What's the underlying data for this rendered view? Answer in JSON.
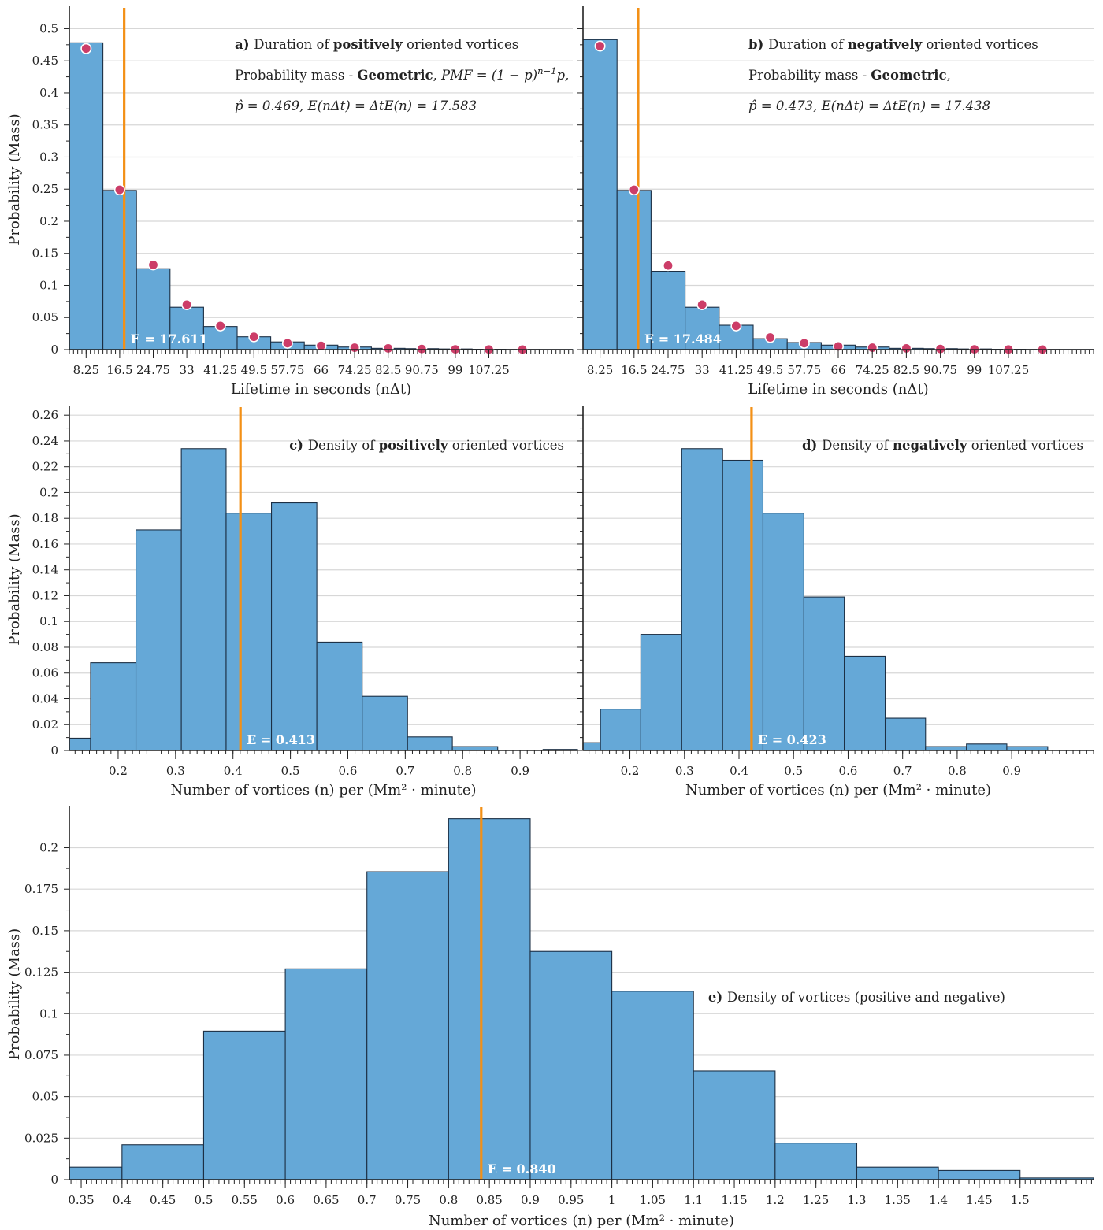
{
  "chart_data": [
    {
      "id": "a",
      "type": "bar",
      "panel_letter": "a)",
      "annotation_lines": [
        [
          {
            "t": "Duration of "
          },
          {
            "t": "positively",
            "b": true
          },
          {
            "t": " oriented vortices"
          }
        ],
        [
          {
            "t": "Probability mass - "
          },
          {
            "t": "Geometric",
            "b": true
          },
          {
            "t": ", "
          },
          {
            "t": "PMF = (1 − p)",
            "i": true
          },
          {
            "t": "n−1",
            "i": true,
            "sup": true
          },
          {
            "t": "p,",
            "i": true
          }
        ],
        [
          {
            "t": "p̂ = 0.469, E(nΔt) = ΔtE(n) = 17.583",
            "i": true
          }
        ]
      ],
      "xlabel": "Lifetime in seconds (nΔt)",
      "ylabel": "Probability (Mass)",
      "xlim": [
        4.125,
        127.875
      ],
      "ylim": [
        0,
        0.53
      ],
      "xticks": [
        8.25,
        16.5,
        24.75,
        33,
        41.25,
        49.5,
        57.75,
        66,
        74.25,
        82.5,
        90.75,
        99,
        107.25
      ],
      "xtick_labels": [
        "8.25",
        "16.5",
        "24.75",
        "33",
        "41.25",
        "49.5",
        "57.75",
        "66",
        "74.25",
        "82.5",
        "90.75",
        "99",
        "107.25"
      ],
      "yticks": [
        0,
        0.05,
        0.1,
        0.15,
        0.2,
        0.25,
        0.3,
        0.35,
        0.4,
        0.45,
        0.5
      ],
      "ytick_labels": [
        "0",
        "0.05",
        "0.1",
        "0.15",
        "0.2",
        "0.25",
        "0.3",
        "0.35",
        "0.4",
        "0.45",
        "0.5"
      ],
      "bin_edges": [
        4.125,
        12.375,
        20.625,
        28.875,
        37.125,
        45.375,
        53.625,
        61.875,
        70.125,
        78.375,
        86.625,
        94.875,
        103.125,
        111.375,
        119.625,
        127.875
      ],
      "values": [
        0.478,
        0.248,
        0.126,
        0.066,
        0.036,
        0.02,
        0.012,
        0.007,
        0.004,
        0.002,
        0.0015,
        0.001,
        0.0005,
        0.0003,
        0.0002
      ],
      "pmf_points": {
        "x": [
          8.25,
          16.5,
          24.75,
          33,
          41.25,
          49.5,
          57.75,
          66,
          74.25,
          82.5,
          90.75,
          99,
          107.25,
          115.5
        ],
        "y": [
          0.469,
          0.249,
          0.132,
          0.07,
          0.037,
          0.02,
          0.01,
          0.006,
          0.003,
          0.002,
          0.001,
          0.0005,
          0.0002,
          0.0001
        ]
      },
      "mean_line": 17.611,
      "mean_label": "E = 17.611",
      "grid": true
    },
    {
      "id": "b",
      "type": "bar",
      "panel_letter": "b)",
      "annotation_lines": [
        [
          {
            "t": "Duration of "
          },
          {
            "t": "negatively",
            "b": true
          },
          {
            "t": " oriented vortices"
          }
        ],
        [
          {
            "t": "Probability mass - "
          },
          {
            "t": "Geometric",
            "b": true
          },
          {
            "t": ","
          }
        ],
        [
          {
            "t": "p̂ = 0.473, E(nΔt) = ΔtE(n) = 17.438",
            "i": true
          }
        ]
      ],
      "xlabel": "Lifetime in seconds (nΔt)",
      "ylabel": "",
      "xlim": [
        4.125,
        127.875
      ],
      "ylim": [
        0,
        0.53
      ],
      "xticks": [
        8.25,
        16.5,
        24.75,
        33,
        41.25,
        49.5,
        57.75,
        66,
        74.25,
        82.5,
        90.75,
        99,
        107.25
      ],
      "xtick_labels": [
        "8.25",
        "16.5",
        "24.75",
        "33",
        "41.25",
        "49.5",
        "57.75",
        "66",
        "74.25",
        "82.5",
        "90.75",
        "99",
        "107.25"
      ],
      "yticks": [
        0,
        0.05,
        0.1,
        0.15,
        0.2,
        0.25,
        0.3,
        0.35,
        0.4,
        0.45,
        0.5
      ],
      "ytick_labels": [],
      "bin_edges": [
        4.125,
        12.375,
        20.625,
        28.875,
        37.125,
        45.375,
        53.625,
        61.875,
        70.125,
        78.375,
        86.625,
        94.875,
        103.125,
        111.375,
        119.625,
        127.875
      ],
      "values": [
        0.483,
        0.248,
        0.122,
        0.066,
        0.038,
        0.017,
        0.011,
        0.007,
        0.004,
        0.002,
        0.0015,
        0.001,
        0.0005,
        0.0003,
        0.0002
      ],
      "pmf_points": {
        "x": [
          8.25,
          16.5,
          24.75,
          33,
          41.25,
          49.5,
          57.75,
          66,
          74.25,
          82.5,
          90.75,
          99,
          107.25,
          115.5
        ],
        "y": [
          0.473,
          0.249,
          0.131,
          0.07,
          0.037,
          0.019,
          0.01,
          0.005,
          0.003,
          0.002,
          0.001,
          0.0005,
          0.0002,
          0.0001
        ]
      },
      "mean_line": 17.484,
      "mean_label": "E = 17.484",
      "grid": true
    },
    {
      "id": "c",
      "type": "bar",
      "panel_letter": "c)",
      "annotation_lines": [
        [
          {
            "t": "Density of "
          },
          {
            "t": "positively",
            "b": true
          },
          {
            "t": " oriented vortices"
          }
        ]
      ],
      "xlabel": "Number of vortices (n) per (Mm² · minute)",
      "ylabel": "Probability (Mass)",
      "xlim": [
        0.115,
        1.0
      ],
      "ylim": [
        0,
        0.265
      ],
      "xticks": [
        0.2,
        0.3,
        0.4,
        0.5,
        0.6,
        0.7,
        0.8,
        0.9
      ],
      "xtick_labels": [
        "0.2",
        "0.3",
        "0.4",
        "0.5",
        "0.6",
        "0.7",
        "0.8",
        "0.9"
      ],
      "yticks": [
        0,
        0.02,
        0.04,
        0.06,
        0.08,
        0.1,
        0.12,
        0.14,
        0.16,
        0.18,
        0.2,
        0.22,
        0.24,
        0.26
      ],
      "ytick_labels": [
        "0",
        "0.02",
        "0.04",
        "0.06",
        "0.08",
        "0.1",
        "0.12",
        "0.14",
        "0.16",
        "0.18",
        "0.2",
        "0.22",
        "0.24",
        "0.26"
      ],
      "bin_edges": [
        0.115,
        0.152,
        0.231,
        0.31,
        0.388,
        0.467,
        0.546,
        0.625,
        0.704,
        0.782,
        0.861,
        0.94,
        1.0
      ],
      "values": [
        0.0095,
        0.068,
        0.171,
        0.234,
        0.184,
        0.192,
        0.084,
        0.042,
        0.0105,
        0.003,
        0.0,
        0.0008
      ],
      "mean_line": 0.413,
      "mean_label": "E = 0.413",
      "grid": true
    },
    {
      "id": "d",
      "type": "bar",
      "panel_letter": "d)",
      "annotation_lines": [
        [
          {
            "t": "Density of "
          },
          {
            "t": "negatively",
            "b": true
          },
          {
            "t": " oriented vortices"
          }
        ]
      ],
      "xlabel": "Number of vortices (n) per (Mm² · minute)",
      "ylabel": "",
      "xlim": [
        0.114,
        1.05
      ],
      "ylim": [
        0,
        0.265
      ],
      "xticks": [
        0.2,
        0.3,
        0.4,
        0.5,
        0.6,
        0.7,
        0.8,
        0.9
      ],
      "xtick_labels": [
        "0.2",
        "0.3",
        "0.4",
        "0.5",
        "0.6",
        "0.7",
        "0.8",
        "0.9"
      ],
      "yticks": [
        0,
        0.02,
        0.04,
        0.06,
        0.08,
        0.1,
        0.12,
        0.14,
        0.16,
        0.18,
        0.2,
        0.22,
        0.24,
        0.26
      ],
      "ytick_labels": [],
      "bin_edges": [
        0.114,
        0.146,
        0.22,
        0.295,
        0.37,
        0.444,
        0.519,
        0.593,
        0.668,
        0.742,
        0.817,
        0.891,
        0.966
      ],
      "values": [
        0.006,
        0.032,
        0.09,
        0.234,
        0.225,
        0.184,
        0.119,
        0.073,
        0.025,
        0.003,
        0.005,
        0.003
      ],
      "mean_line": 0.423,
      "mean_label": "E = 0.423",
      "grid": true
    },
    {
      "id": "e",
      "type": "bar",
      "panel_letter": "e)",
      "annotation_lines": [
        [
          {
            "t": "Density of vortices (positive and negative)"
          }
        ]
      ],
      "xlabel": "Number of vortices (n) per (Mm² · minute)",
      "ylabel": "Probability (Mass)",
      "xlim": [
        0.3355,
        1.59
      ],
      "ylim": [
        0,
        0.2235
      ],
      "xticks": [
        0.35,
        0.4,
        0.45,
        0.5,
        0.55,
        0.6,
        0.65,
        0.7,
        0.75,
        0.8,
        0.85,
        0.9,
        0.95,
        1,
        1.05,
        1.1,
        1.15,
        1.2,
        1.25,
        1.3,
        1.35,
        1.4,
        1.45,
        1.5
      ],
      "xtick_labels": [
        "0.35",
        "0.4",
        "0.45",
        "0.5",
        "0.55",
        "0.6",
        "0.65",
        "0.7",
        "0.75",
        "0.8",
        "0.85",
        "0.9",
        "0.95",
        "1",
        "1.05",
        "1.1",
        "1.15",
        "1.2",
        "1.25",
        "1.3",
        "1.35",
        "1.4",
        "1.45",
        "1.5"
      ],
      "yticks": [
        0,
        0.025,
        0.05,
        0.075,
        0.1,
        0.125,
        0.15,
        0.175,
        0.2
      ],
      "ytick_labels": [
        "0",
        "0.025",
        "0.05",
        "0.075",
        "0.1",
        "0.125",
        "0.15",
        "0.175",
        "0.2"
      ],
      "bin_edges": [
        0.3355,
        0.4,
        0.5,
        0.6,
        0.7,
        0.8,
        0.9,
        1.0,
        1.1,
        1.2,
        1.3,
        1.4,
        1.5,
        1.59
      ],
      "values": [
        0.0075,
        0.021,
        0.0895,
        0.127,
        0.1855,
        0.2175,
        0.1375,
        0.1135,
        0.0655,
        0.022,
        0.0075,
        0.0055,
        0.001
      ],
      "mean_line": 0.84,
      "mean_label": "E = 0.840",
      "grid": true
    }
  ],
  "colors": {
    "bar_fill": "#65a8d7",
    "bar_edge": "#1c2f44",
    "mean_line": "#f39016",
    "pmf_marker": "#cc3d68",
    "grid": "#d7d7d7"
  }
}
